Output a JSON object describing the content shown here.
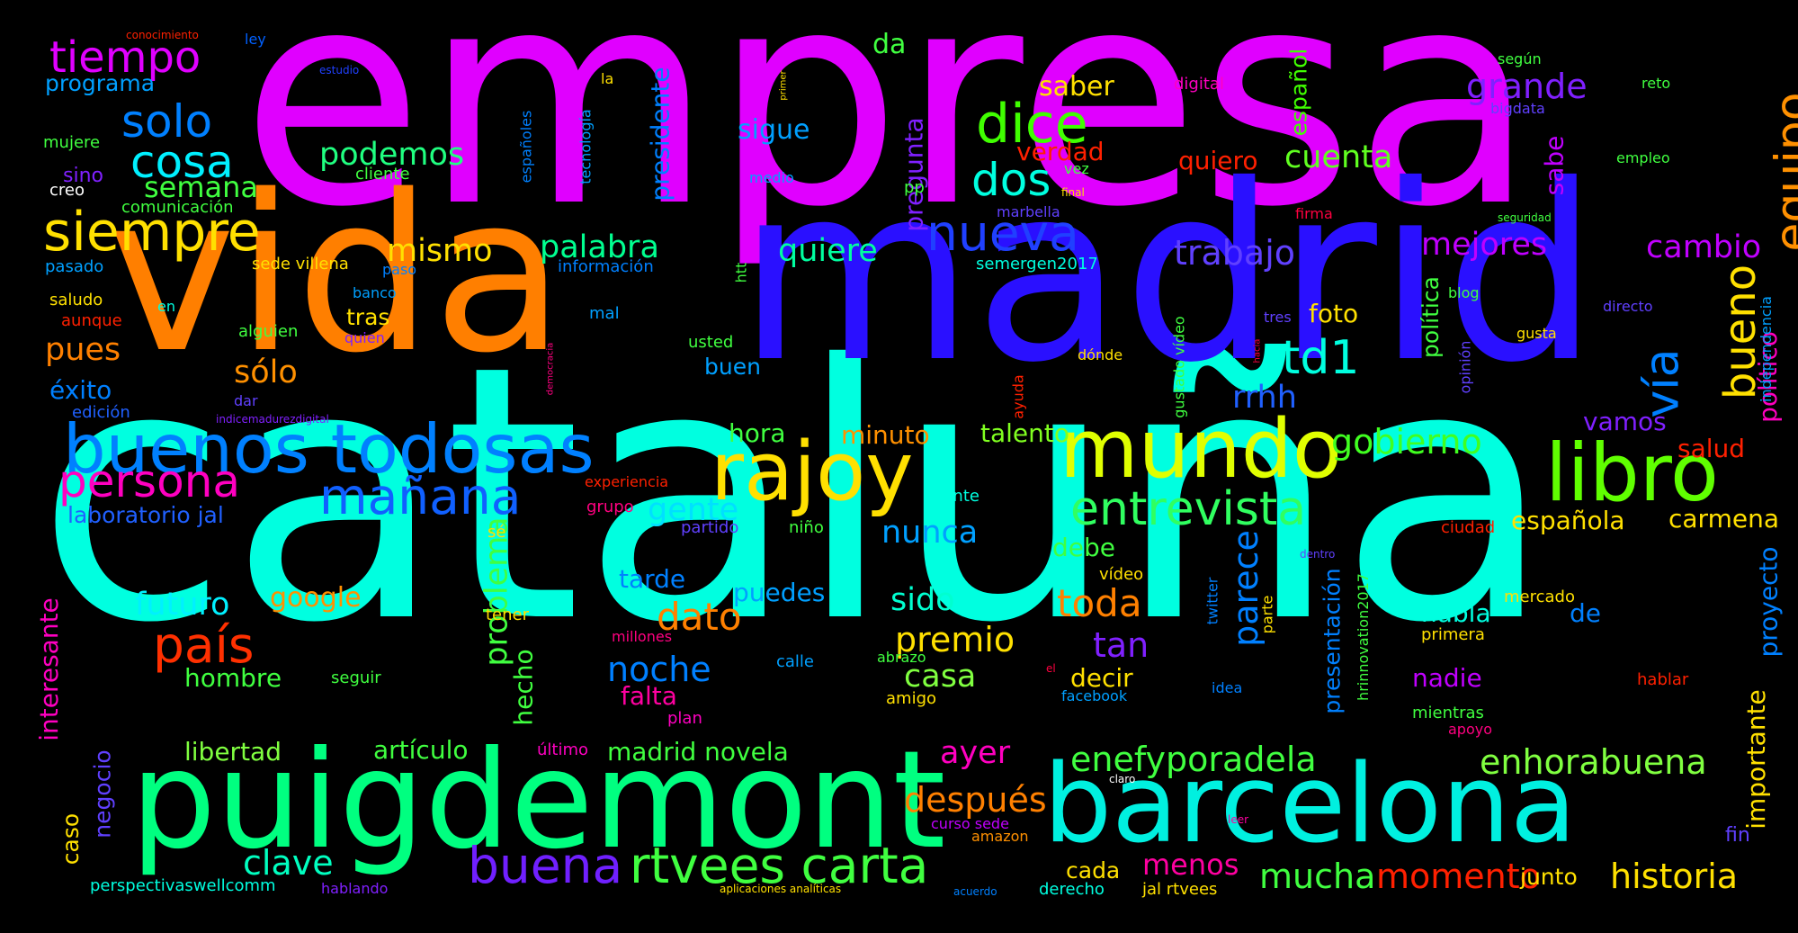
{
  "words": [
    {
      "text": "empresa",
      "color": "#e000ff"
    },
    {
      "text": "cataluña",
      "color": "#00ffe0"
    },
    {
      "text": "vida",
      "color": "#ff7f00"
    },
    {
      "text": "madrid",
      "color": "#2a10ff"
    },
    {
      "text": "puigdemont",
      "color": "#00ff80"
    },
    {
      "text": "barcelona",
      "color": "#00f0e0"
    },
    {
      "text": "buenos todosas",
      "color": "#0080ff"
    },
    {
      "text": "rajoy",
      "color": "#ffe000"
    },
    {
      "text": "mundo",
      "color": "#e0ff00"
    },
    {
      "text": "libro",
      "color": "#60ff00"
    },
    {
      "text": "persona",
      "color": "#ff00c0"
    },
    {
      "text": "mañana",
      "color": "#1060ff"
    },
    {
      "text": "entrevista",
      "color": "#30ff60"
    },
    {
      "text": "siempre",
      "color": "#ffe000"
    },
    {
      "text": "tiempo",
      "color": "#e000ff"
    },
    {
      "text": "solo",
      "color": "#0080ff"
    },
    {
      "text": "cosa",
      "color": "#00f0ff"
    },
    {
      "text": "dice",
      "color": "#40ff00"
    },
    {
      "text": "nueva",
      "color": "#2040ff"
    },
    {
      "text": "dos",
      "color": "#00ffe0"
    },
    {
      "text": "td1",
      "color": "#00ffe0"
    },
    {
      "text": "equipo",
      "color": "#ff9000"
    },
    {
      "text": "bueno",
      "color": "#ffe000"
    },
    {
      "text": "vía",
      "color": "#0080ff"
    },
    {
      "text": "rtvees carta",
      "color": "#40ff40"
    },
    {
      "text": "buena",
      "color": "#7020ff"
    },
    {
      "text": "barcelona",
      "color": "#00f0e0"
    },
    {
      "text": "enhorabuena",
      "color": "#80ff40"
    },
    {
      "text": "enefyporadela",
      "color": "#40ff40"
    },
    {
      "text": "país",
      "color": "#ff3000"
    },
    {
      "text": "gobierno",
      "color": "#40ff20"
    },
    {
      "text": "historia",
      "color": "#ffe000"
    },
    {
      "text": "mucha",
      "color": "#40ff40"
    },
    {
      "text": "momento",
      "color": "#ff2000"
    },
    {
      "text": "clave",
      "color": "#00ffc0"
    },
    {
      "text": "después",
      "color": "#ff8000"
    },
    {
      "text": "premio",
      "color": "#ffe000"
    },
    {
      "text": "dato",
      "color": "#ff8000"
    },
    {
      "text": "noche",
      "color": "#0080ff"
    },
    {
      "text": "toda",
      "color": "#ff8000"
    },
    {
      "text": "tan",
      "color": "#8020ff"
    },
    {
      "text": "parece",
      "color": "#0080ff"
    },
    {
      "text": "trabajo",
      "color": "#6040ff"
    },
    {
      "text": "grande",
      "color": "#8020ff"
    },
    {
      "text": "mejores",
      "color": "#c000ff"
    },
    {
      "text": "cambio",
      "color": "#c000ff"
    },
    {
      "text": "palabra",
      "color": "#00ff90"
    },
    {
      "text": "quiere",
      "color": "#00ffa0"
    },
    {
      "text": "podemos",
      "color": "#20ff80"
    },
    {
      "text": "semana",
      "color": "#40ff40"
    },
    {
      "text": "mismo",
      "color": "#ffe000"
    },
    {
      "text": "sólo",
      "color": "#ff9000"
    },
    {
      "text": "pues",
      "color": "#ff8000"
    },
    {
      "text": "éxito",
      "color": "#0080ff"
    },
    {
      "text": "futuro",
      "color": "#00f0ff"
    },
    {
      "text": "google",
      "color": "#ff9000"
    },
    {
      "text": "problema",
      "color": "#40ff40"
    },
    {
      "text": "gente",
      "color": "#00e0ff"
    },
    {
      "text": "nunca",
      "color": "#00a0ff"
    },
    {
      "text": "sido",
      "color": "#00ffd0"
    },
    {
      "text": "casa",
      "color": "#80ff40"
    },
    {
      "text": "ayer",
      "color": "#ff00c0"
    },
    {
      "text": "falta",
      "color": "#ff00a0"
    },
    {
      "text": "hora",
      "color": "#40ff40"
    },
    {
      "text": "minuto",
      "color": "#ff9000"
    },
    {
      "text": "talento",
      "color": "#80ff20"
    },
    {
      "text": "rrhh",
      "color": "#2060ff"
    },
    {
      "text": "cuenta",
      "color": "#60ff20"
    },
    {
      "text": "quiero",
      "color": "#ff2000"
    },
    {
      "text": "verdad",
      "color": "#ff2000"
    },
    {
      "text": "saber",
      "color": "#ffe000"
    },
    {
      "text": "sigue",
      "color": "#00a0ff"
    },
    {
      "text": "da",
      "color": "#40ff40"
    },
    {
      "text": "presidente",
      "color": "#0080ff"
    },
    {
      "text": "pregunta",
      "color": "#8020ff"
    },
    {
      "text": "español",
      "color": "#40ff00"
    },
    {
      "text": "sabe",
      "color": "#c000ff"
    },
    {
      "text": "salud",
      "color": "#ff2000"
    },
    {
      "text": "vamos",
      "color": "#8020ff"
    },
    {
      "text": "española",
      "color": "#ffe000"
    },
    {
      "text": "carmena",
      "color": "#ffe000"
    },
    {
      "text": "proyecto",
      "color": "#0080ff"
    },
    {
      "text": "importante",
      "color": "#ffe000"
    },
    {
      "text": "político",
      "color": "#ff00c0"
    },
    {
      "text": "de",
      "color": "#0080ff"
    },
    {
      "text": "habla",
      "color": "#00ffe0"
    },
    {
      "text": "debe",
      "color": "#40ff40"
    },
    {
      "text": "decir",
      "color": "#ffe000"
    },
    {
      "text": "nadie",
      "color": "#c000ff"
    },
    {
      "text": "presentación",
      "color": "#0080ff"
    },
    {
      "text": "política",
      "color": "#40ff40"
    },
    {
      "text": "foto",
      "color": "#ffe000"
    },
    {
      "text": "libertad",
      "color": "#80ff40"
    },
    {
      "text": "artículo",
      "color": "#40ff40"
    },
    {
      "text": "madrid novela",
      "color": "#40ff40"
    },
    {
      "text": "hombre",
      "color": "#40ff40"
    },
    {
      "text": "hecho",
      "color": "#40ff40"
    },
    {
      "text": "interesante",
      "color": "#ff00c0"
    },
    {
      "text": "negocio",
      "color": "#6040ff"
    },
    {
      "text": "caso",
      "color": "#ffe000"
    },
    {
      "text": "tarde",
      "color": "#0080ff"
    },
    {
      "text": "puedes",
      "color": "#00a0ff"
    },
    {
      "text": "programa",
      "color": "#00a0ff"
    },
    {
      "text": "tras",
      "color": "#ffe000"
    },
    {
      "text": "menos",
      "color": "#ff00a0"
    },
    {
      "text": "cada",
      "color": "#ffe000"
    },
    {
      "text": "junto",
      "color": "#ffe000"
    },
    {
      "text": "laboratorio jal",
      "color": "#2060ff"
    },
    {
      "text": "fin",
      "color": "#6040ff"
    },
    {
      "text": "sino",
      "color": "#8020ff"
    },
    {
      "text": "buen",
      "color": "#00a0ff"
    },
    {
      "text": "mujere",
      "color": "#40ff40"
    },
    {
      "text": "creo",
      "color": "#ffffff"
    },
    {
      "text": "cliente",
      "color": "#40ff40"
    },
    {
      "text": "comunicación",
      "color": "#40ff40"
    },
    {
      "text": "pasado",
      "color": "#00a0ff"
    },
    {
      "text": "sede villena",
      "color": "#ffe000"
    },
    {
      "text": "paso",
      "color": "#0080ff"
    },
    {
      "text": "información",
      "color": "#0080ff"
    },
    {
      "text": "saludo",
      "color": "#ffe000"
    },
    {
      "text": "aunque",
      "color": "#ff2000"
    },
    {
      "text": "en",
      "color": "#00ffe0"
    },
    {
      "text": "banco",
      "color": "#00a0ff"
    },
    {
      "text": "alguien",
      "color": "#40ff40"
    },
    {
      "text": "quien",
      "color": "#8020ff"
    },
    {
      "text": "mal",
      "color": "#00a0ff"
    },
    {
      "text": "usted",
      "color": "#40ff40"
    },
    {
      "text": "edición",
      "color": "#2060ff"
    },
    {
      "text": "dar",
      "color": "#6040ff"
    },
    {
      "text": "indicemadurezdigital",
      "color": "#8020ff"
    },
    {
      "text": "experiencia",
      "color": "#ff2000"
    },
    {
      "text": "grupo",
      "color": "#ff0080"
    },
    {
      "text": "sé",
      "color": "#ffe000"
    },
    {
      "text": "partido",
      "color": "#6040ff"
    },
    {
      "text": "niño",
      "color": "#40ff40"
    },
    {
      "text": "frente",
      "color": "#00ffe0"
    },
    {
      "text": "tener",
      "color": "#ffe000"
    },
    {
      "text": "millones",
      "color": "#ff0080"
    },
    {
      "text": "calle",
      "color": "#00a0ff"
    },
    {
      "text": "abrazo",
      "color": "#40ff40"
    },
    {
      "text": "seguir",
      "color": "#40ff40"
    },
    {
      "text": "amigo",
      "color": "#ffe000"
    },
    {
      "text": "plan",
      "color": "#ff00c0"
    },
    {
      "text": "último",
      "color": "#ff00c0"
    },
    {
      "text": "curso sede",
      "color": "#c000ff"
    },
    {
      "text": "amazon",
      "color": "#ff9000"
    },
    {
      "text": "hablando",
      "color": "#8020ff"
    },
    {
      "text": "perspectivaswellcomm",
      "color": "#00ffe0"
    },
    {
      "text": "aplicaciones analíticas",
      "color": "#ffe000"
    },
    {
      "text": "acuerdo",
      "color": "#0080ff"
    },
    {
      "text": "derecho",
      "color": "#00ffe0"
    },
    {
      "text": "jal rtvees",
      "color": "#ffe000"
    },
    {
      "text": "conocimiento",
      "color": "#ff2000"
    },
    {
      "text": "ley",
      "color": "#0060ff"
    },
    {
      "text": "estudio",
      "color": "#2040ff"
    },
    {
      "text": "la",
      "color": "#ffe000"
    },
    {
      "text": "españoles",
      "color": "#0080ff"
    },
    {
      "text": "tecnología",
      "color": "#00a0ff"
    },
    {
      "text": "medio",
      "color": "#00a0ff"
    },
    {
      "text": "primer",
      "color": "#ffe000"
    },
    {
      "text": "pp",
      "color": "#40ff40"
    },
    {
      "text": "htt",
      "color": "#40ff40"
    },
    {
      "text": "vez",
      "color": "#40ff40"
    },
    {
      "text": "final",
      "color": "#ffe000"
    },
    {
      "text": "marbella",
      "color": "#6040ff"
    },
    {
      "text": "semergen2017",
      "color": "#00ffe0"
    },
    {
      "text": "digital",
      "color": "#ff00c0"
    },
    {
      "text": "según",
      "color": "#40ff40"
    },
    {
      "text": "reto",
      "color": "#40ff40"
    },
    {
      "text": "bigdata",
      "color": "#6040ff"
    },
    {
      "text": "empleo",
      "color": "#40ff40"
    },
    {
      "text": "firma",
      "color": "#ff0040"
    },
    {
      "text": "seguridad",
      "color": "#40ff40"
    },
    {
      "text": "blog",
      "color": "#40ff40"
    },
    {
      "text": "tres",
      "color": "#6040ff"
    },
    {
      "text": "directo",
      "color": "#6040ff"
    },
    {
      "text": "gusta",
      "color": "#ffe000"
    },
    {
      "text": "dónde",
      "color": "#ffe000"
    },
    {
      "text": "gustado vídeo",
      "color": "#40ff40"
    },
    {
      "text": "hacia",
      "color": "#ff0040"
    },
    {
      "text": "opinión",
      "color": "#6040ff"
    },
    {
      "text": "independencia",
      "color": "#00a0ff"
    },
    {
      "text": "democracia",
      "color": "#ff0080"
    },
    {
      "text": "ayuda",
      "color": "#ff2000"
    },
    {
      "text": "ciudad",
      "color": "#ff2000"
    },
    {
      "text": "vídeo",
      "color": "#ffe000"
    },
    {
      "text": "twitter",
      "color": "#0080ff"
    },
    {
      "text": "dentro",
      "color": "#6040ff"
    },
    {
      "text": "hrinnovation2017",
      "color": "#40ff40"
    },
    {
      "text": "parte",
      "color": "#ffe000"
    },
    {
      "text": "mercado",
      "color": "#ffe000"
    },
    {
      "text": "primera",
      "color": "#ffe000"
    },
    {
      "text": "idea",
      "color": "#0080ff"
    },
    {
      "text": "facebook",
      "color": "#00a0ff"
    },
    {
      "text": "el",
      "color": "#ff0040"
    },
    {
      "text": "hablar",
      "color": "#ff2000"
    },
    {
      "text": "mientras",
      "color": "#40ff40"
    },
    {
      "text": "apoyo",
      "color": "#ff0080"
    },
    {
      "text": "claro",
      "color": "#ffffff"
    },
    {
      "text": "leer",
      "color": "#ff00a0"
    }
  ]
}
